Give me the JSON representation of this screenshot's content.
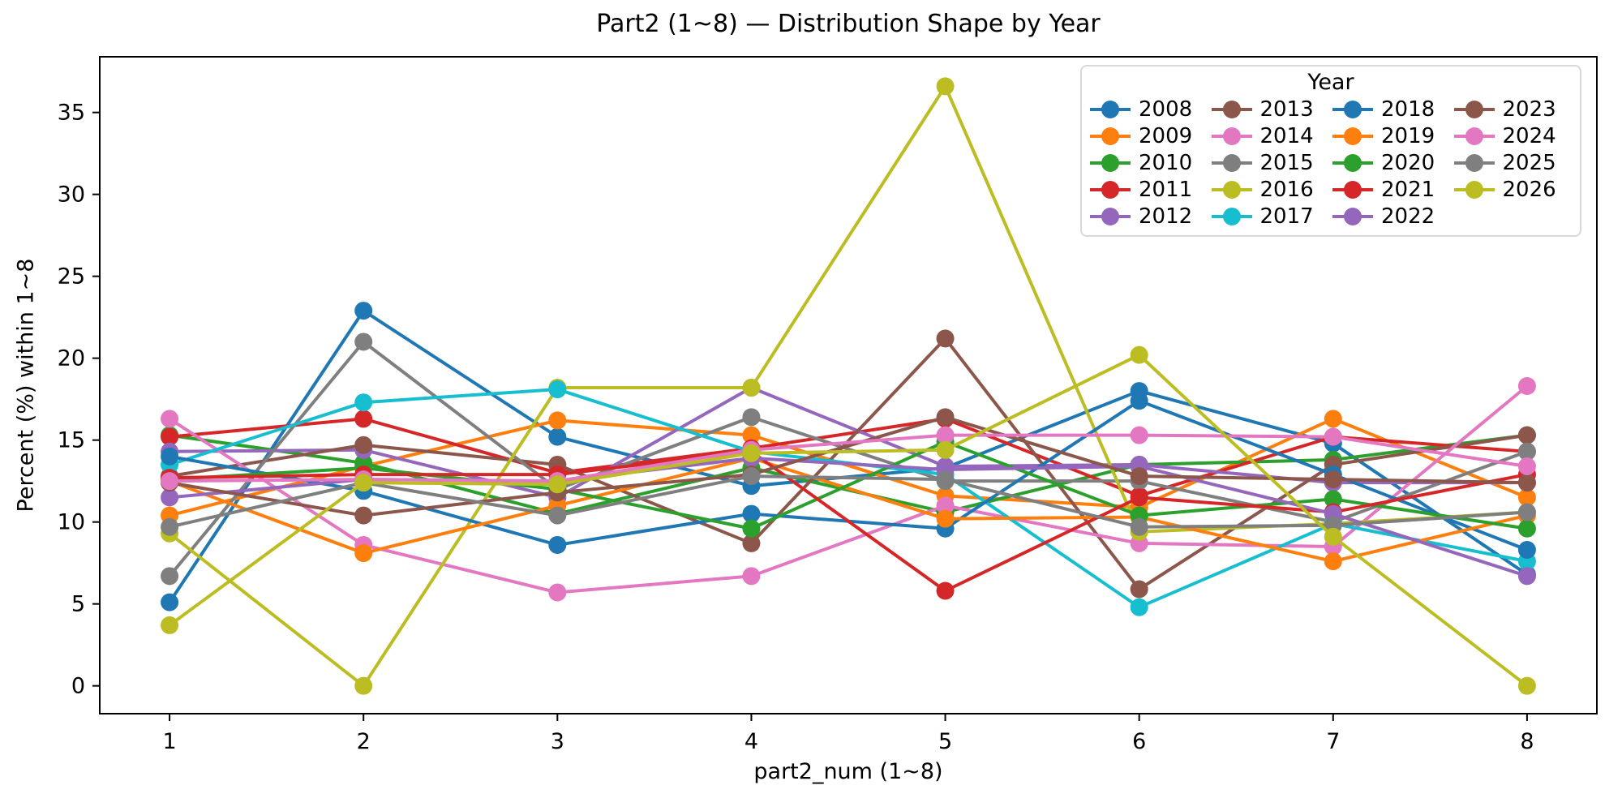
{
  "page": {
    "background": "#ffffff",
    "axis_color": "#000000"
  },
  "chart_data": {
    "type": "line",
    "title": "Part2 (1~8) — Distribution Shape by Year",
    "xlabel": "part2_num (1~8)",
    "ylabel": "Percent (%) within 1~8",
    "x": [
      1,
      2,
      3,
      4,
      5,
      6,
      7,
      8
    ],
    "x_ticks": [
      "1",
      "2",
      "3",
      "4",
      "5",
      "6",
      "7",
      "8"
    ],
    "y_ticks": [
      "0",
      "5",
      "10",
      "15",
      "20",
      "25",
      "30",
      "35"
    ],
    "xlim": [
      0.64,
      8.36
    ],
    "ylim": [
      -1.7,
      38.4
    ],
    "grid": false,
    "marker": "circle",
    "legend": {
      "title": "Year",
      "position": "upper right",
      "columns": 4,
      "fill_order": "column-major"
    },
    "series": [
      {
        "name": "2008",
        "color": "#1f77b4",
        "values": [
          5.1,
          22.9,
          15.2,
          12.2,
          13.3,
          18.0,
          14.8,
          6.8
        ]
      },
      {
        "name": "2009",
        "color": "#ff7f0e",
        "values": [
          10.4,
          13.4,
          16.2,
          15.3,
          11.6,
          10.9,
          16.3,
          11.5
        ]
      },
      {
        "name": "2010",
        "color": "#2ca02c",
        "values": [
          15.3,
          13.6,
          10.5,
          13.3,
          10.6,
          13.5,
          13.8,
          15.3
        ]
      },
      {
        "name": "2011",
        "color": "#d62728",
        "values": [
          15.2,
          16.3,
          13.0,
          14.5,
          16.3,
          11.6,
          15.2,
          14.3
        ]
      },
      {
        "name": "2012",
        "color": "#9467bd",
        "values": [
          14.3,
          14.4,
          11.5,
          18.2,
          13.4,
          13.5,
          12.4,
          12.4
        ]
      },
      {
        "name": "2013",
        "color": "#8c564b",
        "values": [
          12.8,
          14.7,
          13.5,
          8.7,
          21.2,
          5.9,
          13.5,
          15.3
        ]
      },
      {
        "name": "2014",
        "color": "#e377c2",
        "values": [
          16.3,
          8.6,
          5.7,
          6.7,
          11.0,
          8.7,
          8.5,
          18.3
        ]
      },
      {
        "name": "2015",
        "color": "#7f7f7f",
        "values": [
          6.7,
          21.0,
          12.0,
          16.4,
          12.5,
          12.5,
          10.0,
          14.3
        ]
      },
      {
        "name": "2016",
        "color": "#bcbd22",
        "values": [
          9.3,
          0.0,
          18.2,
          18.2,
          36.6,
          9.4,
          9.9,
          10.6
        ]
      },
      {
        "name": "2017",
        "color": "#17becf",
        "values": [
          13.5,
          17.3,
          18.1,
          14.3,
          12.9,
          4.8,
          9.9,
          7.6
        ]
      },
      {
        "name": "2018",
        "color": "#1f77b4",
        "values": [
          14.0,
          11.9,
          8.6,
          10.5,
          9.6,
          17.4,
          12.9,
          8.3
        ]
      },
      {
        "name": "2019",
        "color": "#ff7f0e",
        "values": [
          12.5,
          8.1,
          11.0,
          13.9,
          10.2,
          10.3,
          7.6,
          10.4
        ]
      },
      {
        "name": "2020",
        "color": "#2ca02c",
        "values": [
          12.6,
          13.3,
          12.0,
          9.6,
          14.9,
          10.4,
          11.4,
          9.6
        ]
      },
      {
        "name": "2021",
        "color": "#d62728",
        "values": [
          12.7,
          12.9,
          12.9,
          14.3,
          5.8,
          11.5,
          10.6,
          12.9
        ]
      },
      {
        "name": "2022",
        "color": "#9467bd",
        "values": [
          11.5,
          12.6,
          12.5,
          13.9,
          13.2,
          13.4,
          10.5,
          6.7
        ]
      },
      {
        "name": "2023",
        "color": "#8c564b",
        "values": [
          12.4,
          10.4,
          11.8,
          12.9,
          16.4,
          12.8,
          12.6,
          12.4
        ]
      },
      {
        "name": "2024",
        "color": "#e377c2",
        "values": [
          12.5,
          12.6,
          12.5,
          14.4,
          15.3,
          15.3,
          15.2,
          13.4
        ]
      },
      {
        "name": "2025",
        "color": "#7f7f7f",
        "values": [
          9.7,
          12.4,
          10.4,
          12.8,
          12.6,
          9.7,
          9.8,
          10.6
        ]
      },
      {
        "name": "2026",
        "color": "#bcbd22",
        "values": [
          3.7,
          12.4,
          12.3,
          14.2,
          14.4,
          20.2,
          9.1,
          0.0
        ]
      }
    ]
  }
}
